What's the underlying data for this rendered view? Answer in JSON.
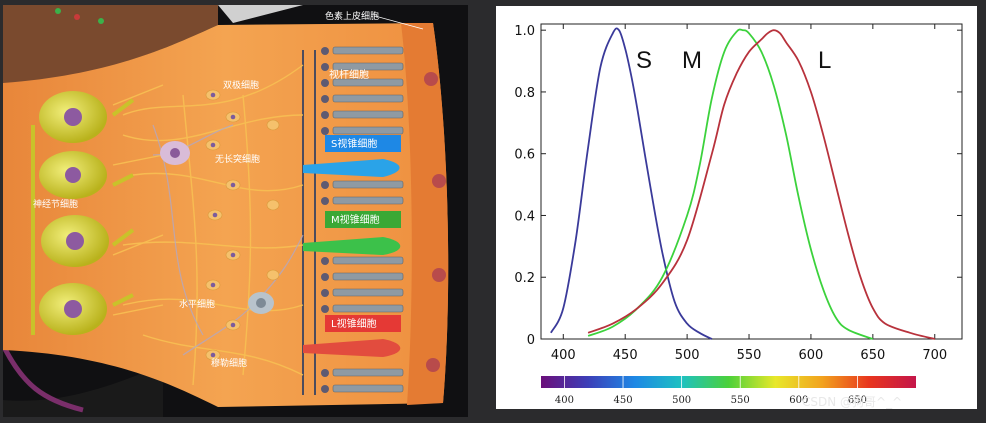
{
  "retina": {
    "labels": {
      "pigment_epithelium": "色素上皮细胞",
      "rod": "视杆细胞",
      "bipolar": "双极细胞",
      "amacrine": "无长突细胞",
      "ganglion": "神经节细胞",
      "s_cone": "S视锥细胞",
      "m_cone": "M视锥细胞",
      "horizontal": "水平细胞",
      "l_cone": "L视锥细胞",
      "muller": "穆勒细胞"
    },
    "colors": {
      "s_cone": "#2196f3",
      "m_cone": "#43b02a",
      "l_cone": "#e53935",
      "tissue": "#f29a4a",
      "neuron": "#d8d43a"
    }
  },
  "chart_data": {
    "type": "line",
    "title": "",
    "xlabel": "",
    "ylabel": "",
    "xlim": [
      382,
      722
    ],
    "ylim": [
      0,
      1.02
    ],
    "xticks": [
      "400",
      "450",
      "500",
      "550",
      "600",
      "650",
      "700"
    ],
    "yticks": [
      "0",
      "0.2",
      "0.4",
      "0.6",
      "0.8",
      "1.0"
    ],
    "series": [
      {
        "name": "S",
        "color": "#3a3a9a",
        "x": [
          390,
          400,
          410,
          420,
          430,
          440,
          445,
          450,
          455,
          460,
          470,
          480,
          490,
          500,
          510,
          520
        ],
        "y": [
          0.02,
          0.1,
          0.32,
          0.62,
          0.88,
          0.99,
          1.0,
          0.94,
          0.85,
          0.74,
          0.5,
          0.28,
          0.12,
          0.05,
          0.02,
          0.0
        ]
      },
      {
        "name": "M",
        "color": "#3cd23c",
        "x": [
          420,
          440,
          460,
          480,
          500,
          510,
          520,
          530,
          540,
          545,
          550,
          560,
          570,
          580,
          590,
          600,
          610,
          620,
          630,
          650
        ],
        "y": [
          0.01,
          0.04,
          0.1,
          0.2,
          0.4,
          0.56,
          0.78,
          0.93,
          0.995,
          1.0,
          0.99,
          0.93,
          0.82,
          0.66,
          0.46,
          0.29,
          0.16,
          0.07,
          0.03,
          0.0
        ]
      },
      {
        "name": "L",
        "color": "#b8323c",
        "x": [
          420,
          440,
          460,
          480,
          500,
          520,
          530,
          540,
          550,
          560,
          565,
          570,
          575,
          580,
          590,
          600,
          610,
          620,
          630,
          640,
          650,
          660,
          680,
          700
        ],
        "y": [
          0.02,
          0.05,
          0.1,
          0.18,
          0.32,
          0.6,
          0.76,
          0.86,
          0.93,
          0.97,
          0.99,
          1.0,
          0.99,
          0.96,
          0.9,
          0.8,
          0.66,
          0.5,
          0.34,
          0.2,
          0.1,
          0.05,
          0.02,
          0.0
        ]
      }
    ],
    "curve_labels": [
      "S",
      "M",
      "L"
    ],
    "spectrum_ticks": [
      "400",
      "450",
      "500",
      "550",
      "600",
      "650"
    ],
    "spectrum_colors": [
      "#6b0f7a",
      "#3d3fb8",
      "#1e88e5",
      "#1ec1c1",
      "#4bd13a",
      "#e8e82a",
      "#f2a21e",
      "#e8351e",
      "#c4164a"
    ]
  },
  "watermark": "CSDN @狗哥^_^"
}
